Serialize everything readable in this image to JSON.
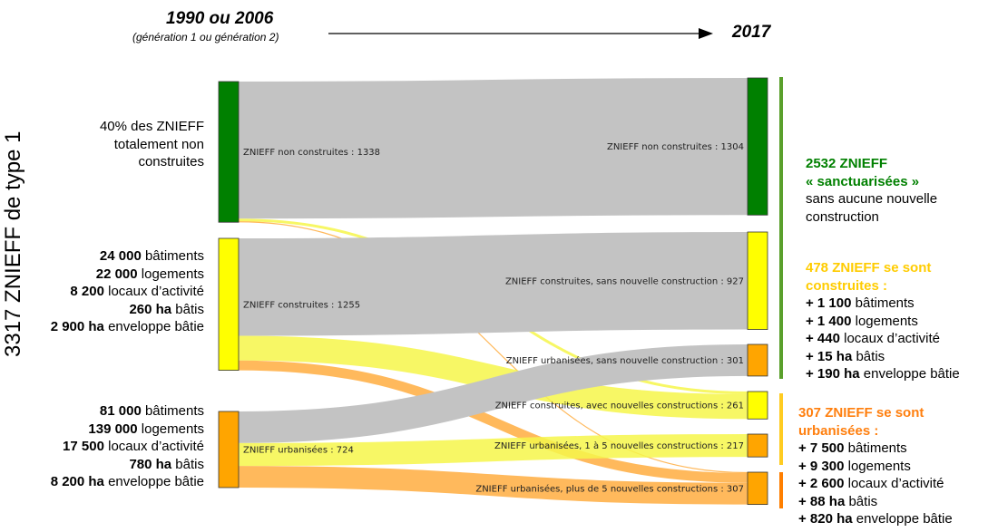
{
  "header": {
    "start_year": "1990 ou 2006",
    "start_sub": "(génération 1 ou génération 2)",
    "end_year": "2017"
  },
  "vertical_title": "3317 ZNIEFF de type 1",
  "colors": {
    "green": "#008000",
    "yellow": "#ffff00",
    "orange": "#ffa500",
    "gray_link": "#c3c3c3",
    "yellow_link": "#f6f64a",
    "orange_link": "#ffad40",
    "green_bar": "#5aa02c",
    "yellow_bar": "#ffcc22",
    "orange_bar": "#ff7f00",
    "green_text": "#008000",
    "yellow_text": "#ffcc00",
    "orange_text": "#ff7f0e"
  },
  "left_labels": {
    "non_construites": [
      "40% des ZNIEFF",
      "totalement non",
      "construites"
    ],
    "construites": [
      {
        "bold": "24 000",
        "text": " bâtiments"
      },
      {
        "bold": "22 000",
        "text": " logements"
      },
      {
        "bold": "8 200",
        "text": " locaux d’activité"
      },
      {
        "bold": "260 ha",
        "text": " bâtis"
      },
      {
        "bold": "2 900 ha",
        "text": " enveloppe bâtie"
      }
    ],
    "urbanisees": [
      {
        "bold": "81 000",
        "text": " bâtiments"
      },
      {
        "bold": "139 000",
        "text": " logements"
      },
      {
        "bold": "17 500",
        "text": " locaux d’activité"
      },
      {
        "bold": "780 ha",
        "text": " bâtis"
      },
      {
        "bold": "8 200 ha",
        "text": " enveloppe bâtie"
      }
    ]
  },
  "nodes": [
    {
      "id": "L1",
      "label": "ZNIEFF non construites : 1338",
      "value": 1338,
      "color": "green"
    },
    {
      "id": "L2",
      "label": "ZNIEFF construites : 1255",
      "value": 1255,
      "color": "yellow"
    },
    {
      "id": "L3",
      "label": "ZNIEFF urbanisées : 724",
      "value": 724,
      "color": "orange"
    },
    {
      "id": "R1",
      "label": "ZNIEFF non construites : 1304",
      "value": 1304,
      "color": "green"
    },
    {
      "id": "R2",
      "label": "ZNIEFF construites, sans nouvelle construction : 927",
      "value": 927,
      "color": "yellow"
    },
    {
      "id": "R3",
      "label": "ZNIEFF urbanisées, sans nouvelle construction : 301",
      "value": 301,
      "color": "orange"
    },
    {
      "id": "R4",
      "label": "ZNIEFF construites, avec nouvelles constructions : 261",
      "value": 261,
      "color": "yellow"
    },
    {
      "id": "R5",
      "label": "ZNIEFF urbanisées, 1 à 5 nouvelles constructions : 217",
      "value": 217,
      "color": "orange"
    },
    {
      "id": "R6",
      "label": "ZNIEFF urbanisées, plus de 5 nouvelles constructions : 307",
      "value": 307,
      "color": "orange"
    }
  ],
  "links": [
    {
      "source": "L1",
      "target": "R1",
      "value": 1304,
      "color": "gray_link"
    },
    {
      "source": "L1",
      "target": "R4",
      "value": 26,
      "color": "yellow_link"
    },
    {
      "source": "L1",
      "target": "R6",
      "value": 8,
      "color": "orange_link"
    },
    {
      "source": "L2",
      "target": "R2",
      "value": 927,
      "color": "gray_link"
    },
    {
      "source": "L2",
      "target": "R4",
      "value": 235,
      "color": "yellow_link"
    },
    {
      "source": "L2",
      "target": "R6",
      "value": 93,
      "color": "orange_link"
    },
    {
      "source": "L3",
      "target": "R3",
      "value": 301,
      "color": "gray_link"
    },
    {
      "source": "L3",
      "target": "R5",
      "value": 217,
      "color": "yellow_link"
    },
    {
      "source": "L3",
      "target": "R6",
      "value": 206,
      "color": "orange_link"
    }
  ],
  "right_blocks": {
    "sanctuarisees": {
      "title": [
        "2532 ZNIEFF",
        "« sanctuarisées »"
      ],
      "lines": [
        "sans aucune nouvelle",
        "construction"
      ]
    },
    "construites": {
      "title": [
        "478 ZNIEFF se sont",
        "construites :"
      ],
      "lines": [
        {
          "bold": "+ 1 100",
          "text": " bâtiments"
        },
        {
          "bold": "+ 1 400",
          "text": " logements"
        },
        {
          "bold": "+ 440",
          "text": " locaux d’activité"
        },
        {
          "bold": "+ 15 ha",
          "text": " bâtis"
        },
        {
          "bold": "+ 190 ha",
          "text": " enveloppe bâtie"
        }
      ]
    },
    "urbanisees": {
      "title": [
        "307 ZNIEFF se sont",
        "urbanisées :"
      ],
      "lines": [
        {
          "bold": "+ 7 500",
          "text": " bâtiments"
        },
        {
          "bold": "+ 9 300",
          "text": " logements"
        },
        {
          "bold": "+ 2 600",
          "text": " locaux d’activité"
        },
        {
          "bold": "+ 88 ha",
          "text": " bâtis"
        },
        {
          "bold": "+ 820 ha",
          "text": " enveloppe bâtie"
        }
      ]
    }
  }
}
